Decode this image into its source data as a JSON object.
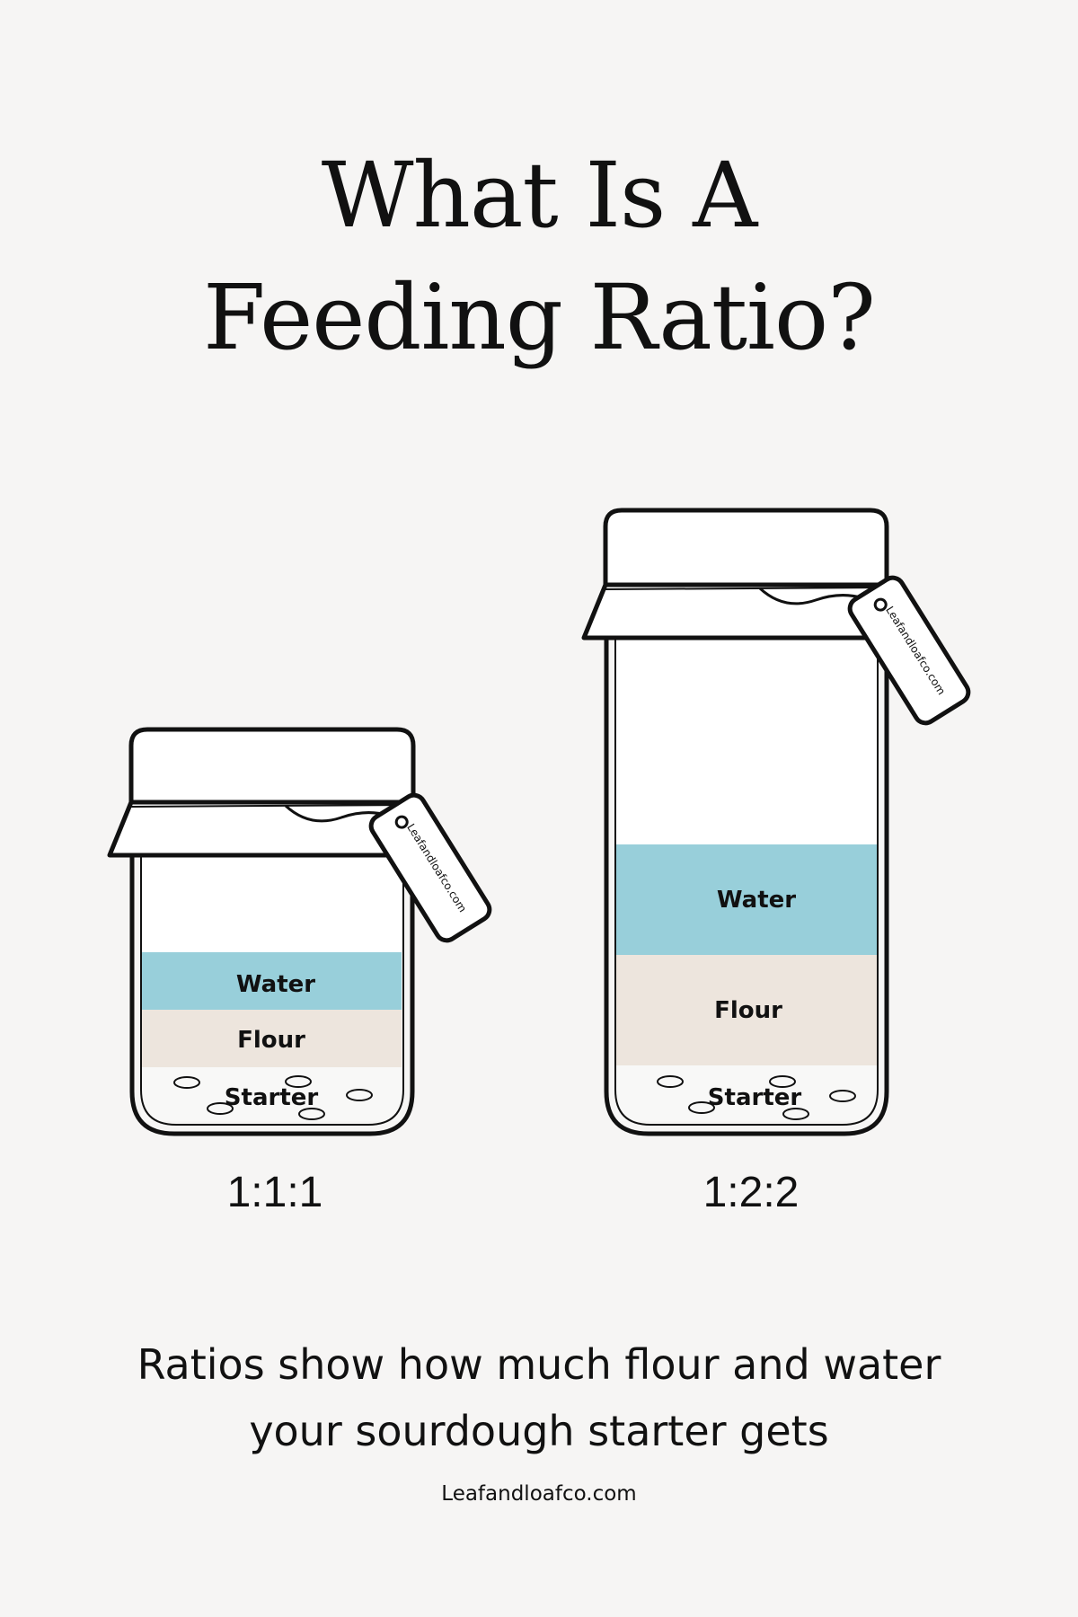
{
  "title": {
    "line1": "What Is A",
    "line2": "Feeding Ratio?"
  },
  "jars": [
    {
      "ratio": "1:1:1",
      "tag_text": "Leafandloafco.com",
      "layers": {
        "water": "Water",
        "flour": "Flour",
        "starter": "Starter"
      }
    },
    {
      "ratio": "1:2:2",
      "tag_text": "Leafandloafco.com",
      "layers": {
        "water": "Water",
        "flour": "Flour",
        "starter": "Starter"
      }
    }
  ],
  "caption": {
    "line1": "Ratios show how much flour and water",
    "line2": "your sourdough starter gets"
  },
  "footer": "Leafandloafco.com",
  "colors": {
    "background": "#f6f5f4",
    "water": "#98cfda",
    "flour": "#ede5dd",
    "outline": "#111111"
  }
}
